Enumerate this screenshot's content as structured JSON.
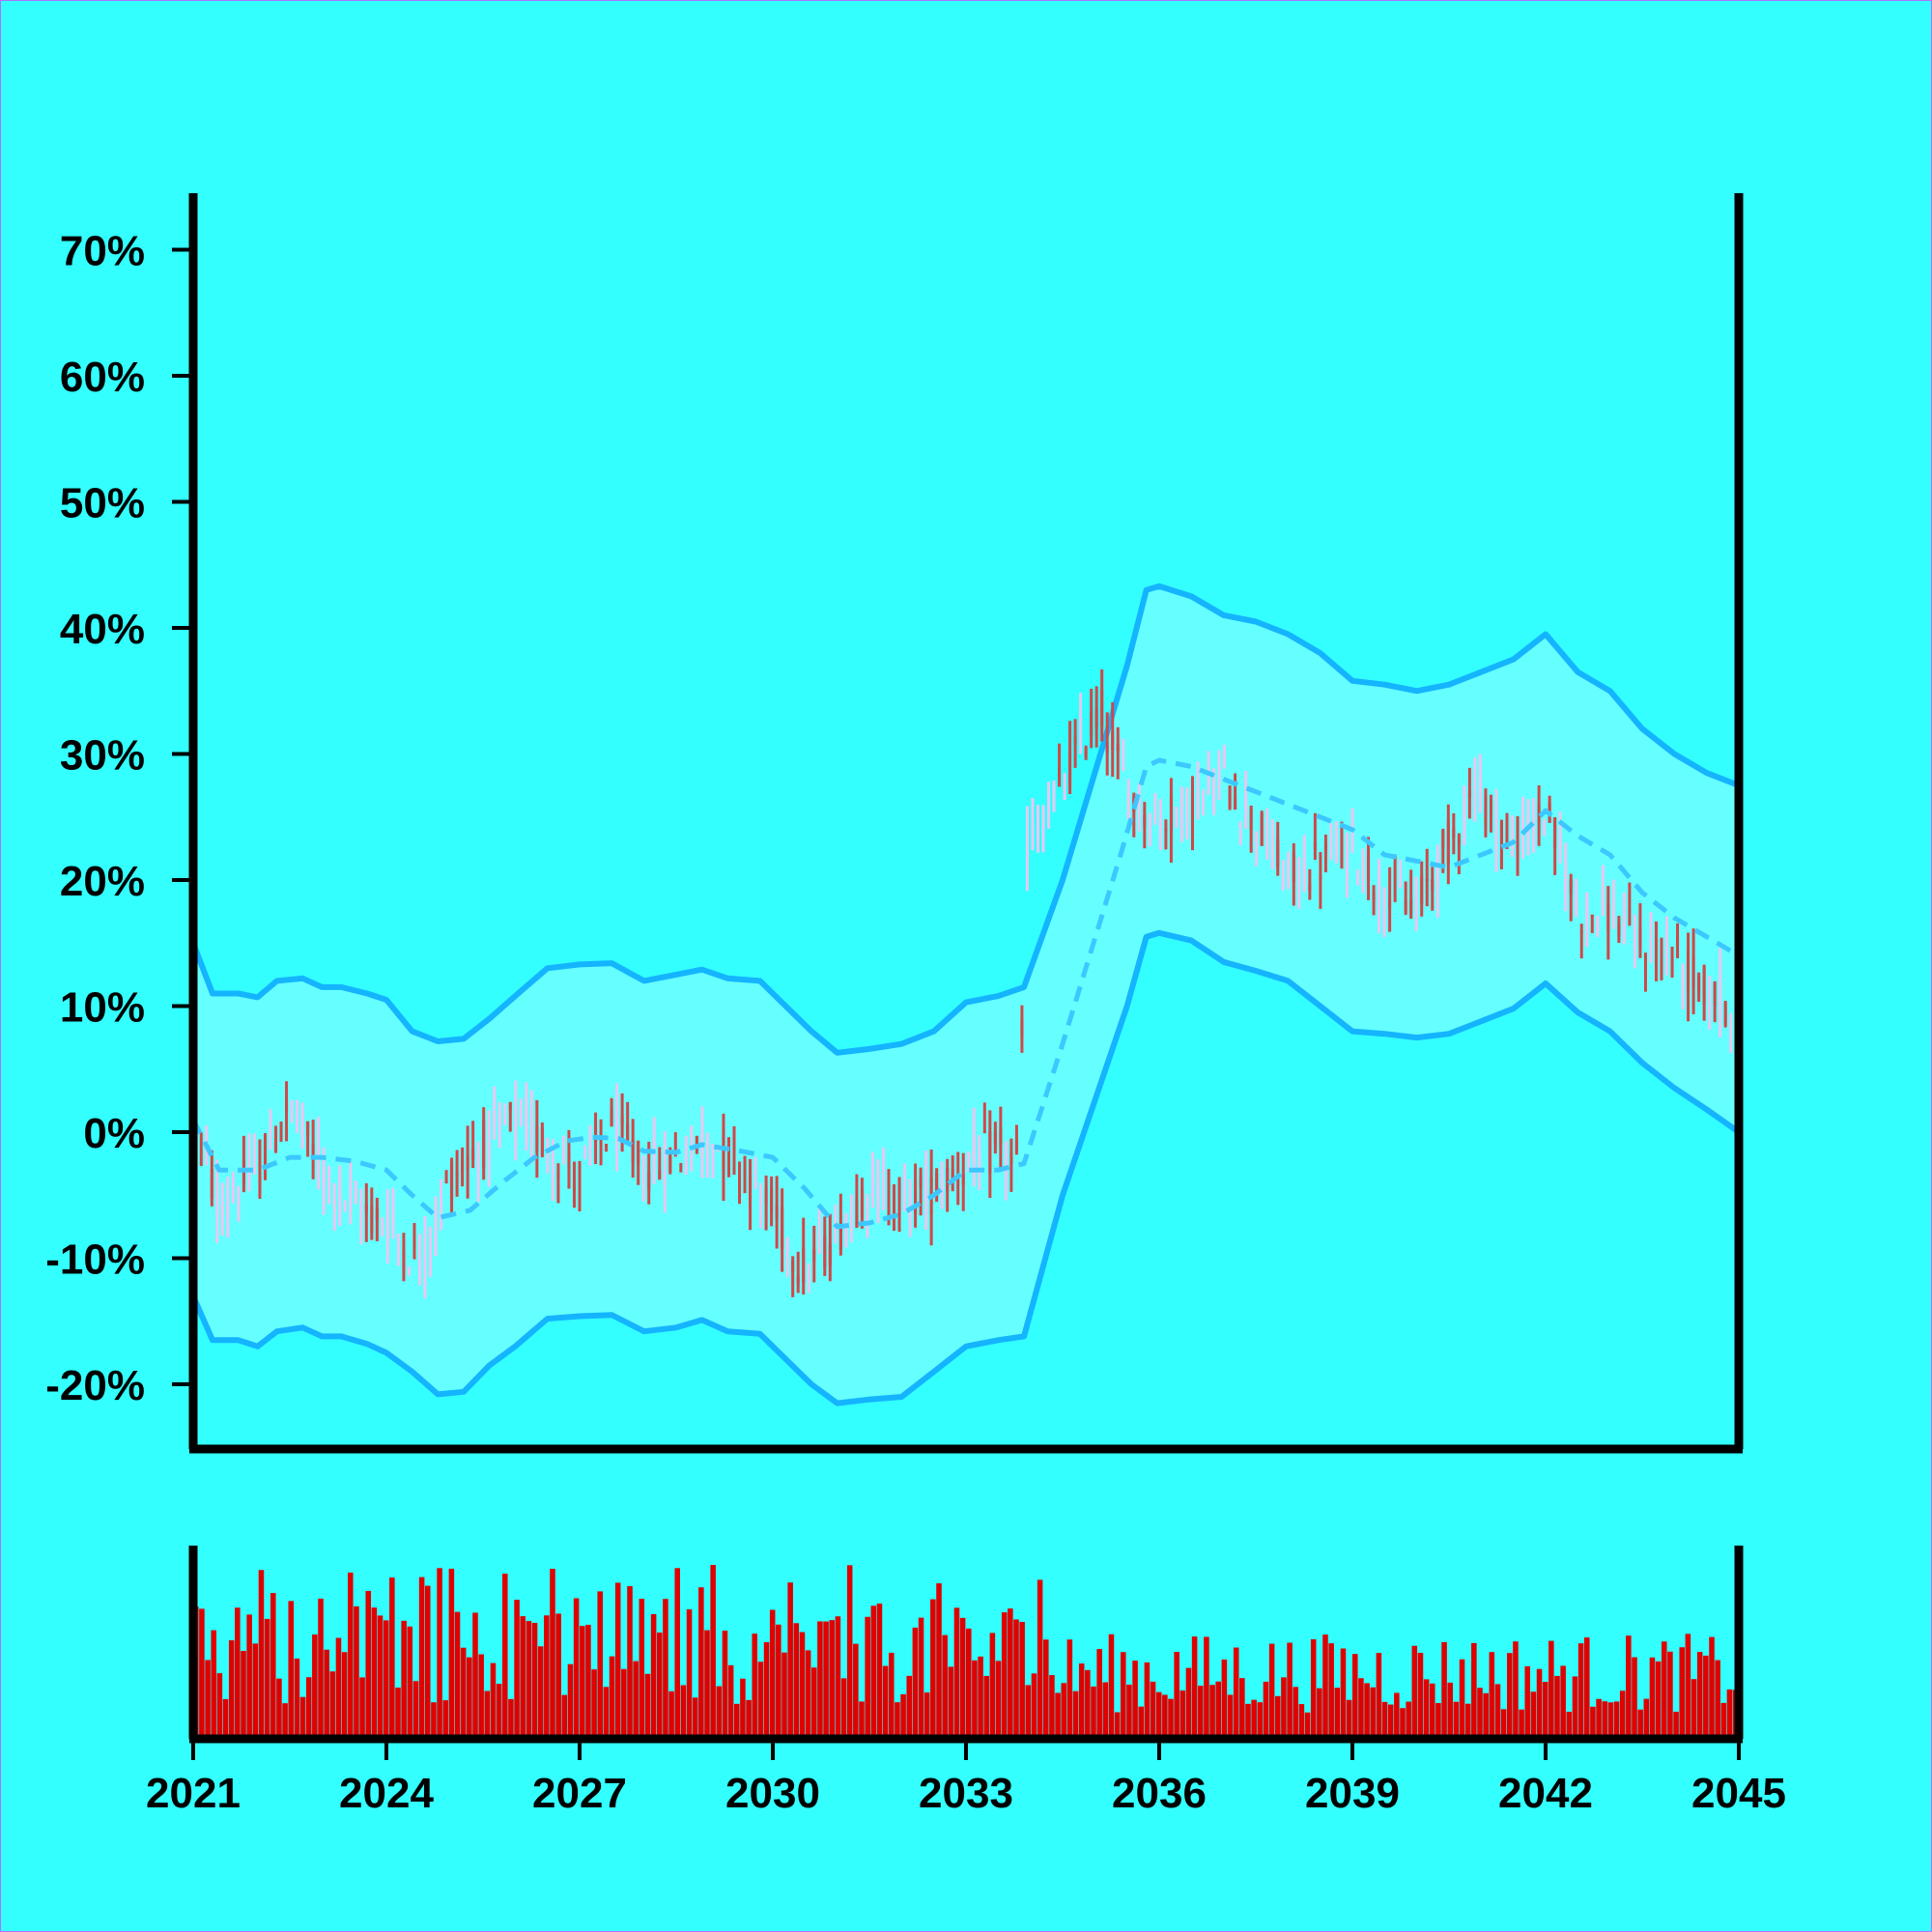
{
  "chart_data": {
    "type": "candlestick",
    "x_axis": {
      "min": 2021,
      "max": 2045,
      "ticks": [
        "2021",
        "2024",
        "2027",
        "2030",
        "2033",
        "2036",
        "2039",
        "2042",
        "2045"
      ]
    },
    "y_axis": {
      "min": -25,
      "max": 75,
      "ticks": [
        "-20%",
        "-10%",
        "0%",
        "10%",
        "20%",
        "30%",
        "40%",
        "50%",
        "60%",
        "70%"
      ],
      "tick_values": [
        -20,
        -10,
        0,
        10,
        20,
        30,
        40,
        50,
        60,
        70
      ]
    },
    "colors": {
      "background": "#33FFFF",
      "band_fill": "#66FFFF",
      "band_line": "#14B4FF",
      "mid_line": "#3CC8FF",
      "up": "#E8C8F0",
      "down": "#D24646",
      "volume": "#E00000",
      "axis": "#000000"
    },
    "candle_anchors": [
      [
        2021.0,
        1.0
      ],
      [
        2021.4,
        -6.0
      ],
      [
        2022.0,
        -3.0
      ],
      [
        2022.5,
        2.0
      ],
      [
        2023.0,
        -3.0
      ],
      [
        2023.5,
        -6.0
      ],
      [
        2024.0,
        -7.0
      ],
      [
        2024.5,
        -10.5
      ],
      [
        2025.0,
        -3.5
      ],
      [
        2025.5,
        -1.0
      ],
      [
        2026.0,
        1.0
      ],
      [
        2026.5,
        -1.0
      ],
      [
        2027.0,
        -3.5
      ],
      [
        2027.5,
        0.5
      ],
      [
        2028.0,
        -3.0
      ],
      [
        2028.5,
        -2.0
      ],
      [
        2029.0,
        -0.5
      ],
      [
        2029.5,
        -2.5
      ],
      [
        2030.0,
        -6.5
      ],
      [
        2030.5,
        -11.0
      ],
      [
        2031.0,
        -8.0
      ],
      [
        2031.5,
        -4.0
      ],
      [
        2032.0,
        -5.5
      ],
      [
        2032.5,
        -4.5
      ],
      [
        2033.0,
        -2.5
      ],
      [
        2033.5,
        -1.5
      ],
      [
        2033.85,
        -2.5
      ],
      [
        2033.9,
        22.5
      ],
      [
        2034.3,
        25.5
      ],
      [
        2034.8,
        31.0
      ],
      [
        2035.1,
        33.5
      ],
      [
        2035.5,
        27.0
      ],
      [
        2036.0,
        24.5
      ],
      [
        2036.5,
        26.0
      ],
      [
        2037.0,
        28.0
      ],
      [
        2037.5,
        24.5
      ],
      [
        2038.0,
        20.0
      ],
      [
        2038.5,
        21.5
      ],
      [
        2039.0,
        22.5
      ],
      [
        2039.5,
        19.0
      ],
      [
        2040.0,
        18.0
      ],
      [
        2040.5,
        23.0
      ],
      [
        2040.9,
        27.5
      ],
      [
        2041.5,
        22.5
      ],
      [
        2042.0,
        25.5
      ],
      [
        2042.5,
        17.5
      ],
      [
        2043.0,
        17.5
      ],
      [
        2043.5,
        14.5
      ],
      [
        2044.0,
        14.0
      ],
      [
        2044.5,
        11.0
      ],
      [
        2045.0,
        9.5
      ]
    ],
    "mid_line": [
      [
        2021.0,
        1.0
      ],
      [
        2021.4,
        -3.0
      ],
      [
        2022.0,
        -3.0
      ],
      [
        2022.5,
        -2.0
      ],
      [
        2023.0,
        -2.0
      ],
      [
        2023.5,
        -2.3
      ],
      [
        2024.0,
        -3.0
      ],
      [
        2024.4,
        -5.0
      ],
      [
        2024.8,
        -6.8
      ],
      [
        2025.3,
        -6.2
      ],
      [
        2025.8,
        -4.0
      ],
      [
        2026.3,
        -2.0
      ],
      [
        2026.8,
        -0.7
      ],
      [
        2027.2,
        -0.4
      ],
      [
        2027.6,
        -0.5
      ],
      [
        2028.0,
        -1.5
      ],
      [
        2028.5,
        -1.6
      ],
      [
        2028.9,
        -1.0
      ],
      [
        2029.5,
        -1.5
      ],
      [
        2030.0,
        -2.0
      ],
      [
        2030.5,
        -4.5
      ],
      [
        2031.0,
        -7.5
      ],
      [
        2031.5,
        -7.2
      ],
      [
        2032.0,
        -6.5
      ],
      [
        2032.5,
        -5.0
      ],
      [
        2033.0,
        -3.0
      ],
      [
        2033.5,
        -3.0
      ],
      [
        2033.9,
        -2.5
      ],
      [
        2034.5,
        7.0
      ],
      [
        2035.4,
        22.0
      ],
      [
        2035.8,
        29.0
      ],
      [
        2036.0,
        29.5
      ],
      [
        2036.5,
        29.0
      ],
      [
        2037.0,
        28.0
      ],
      [
        2037.5,
        27.0
      ],
      [
        2038.0,
        26.0
      ],
      [
        2038.5,
        25.0
      ],
      [
        2039.0,
        24.0
      ],
      [
        2039.5,
        22.0
      ],
      [
        2040.0,
        21.5
      ],
      [
        2040.5,
        21.0
      ],
      [
        2041.0,
        22.0
      ],
      [
        2041.5,
        23.0
      ],
      [
        2042.0,
        25.5
      ],
      [
        2042.5,
        23.5
      ],
      [
        2043.0,
        22.0
      ],
      [
        2043.5,
        19.0
      ],
      [
        2044.0,
        17.0
      ],
      [
        2044.5,
        15.5
      ],
      [
        2045.0,
        14.0
      ]
    ],
    "band_upper": [
      [
        2021.0,
        15.0
      ],
      [
        2021.3,
        11.0
      ],
      [
        2021.7,
        11.0
      ],
      [
        2022.0,
        10.7
      ],
      [
        2022.3,
        12.0
      ],
      [
        2022.7,
        12.2
      ],
      [
        2023.0,
        11.5
      ],
      [
        2023.3,
        11.5
      ],
      [
        2023.7,
        11.0
      ],
      [
        2024.0,
        10.5
      ],
      [
        2024.4,
        8.0
      ],
      [
        2024.8,
        7.2
      ],
      [
        2025.2,
        7.4
      ],
      [
        2025.6,
        9.0
      ],
      [
        2026.0,
        10.8
      ],
      [
        2026.5,
        13.0
      ],
      [
        2027.0,
        13.3
      ],
      [
        2027.5,
        13.4
      ],
      [
        2028.0,
        12.0
      ],
      [
        2028.5,
        12.5
      ],
      [
        2028.9,
        12.9
      ],
      [
        2029.3,
        12.2
      ],
      [
        2029.8,
        12.0
      ],
      [
        2030.2,
        10.0
      ],
      [
        2030.6,
        8.0
      ],
      [
        2031.0,
        6.3
      ],
      [
        2031.5,
        6.6
      ],
      [
        2032.0,
        7.0
      ],
      [
        2032.5,
        8.0
      ],
      [
        2033.0,
        10.3
      ],
      [
        2033.5,
        10.8
      ],
      [
        2033.9,
        11.5
      ],
      [
        2034.5,
        20.0
      ],
      [
        2035.5,
        37.0
      ],
      [
        2035.8,
        43.0
      ],
      [
        2036.0,
        43.3
      ],
      [
        2036.5,
        42.5
      ],
      [
        2037.0,
        41.0
      ],
      [
        2037.5,
        40.5
      ],
      [
        2038.0,
        39.5
      ],
      [
        2038.5,
        38.0
      ],
      [
        2039.0,
        35.8
      ],
      [
        2039.5,
        35.5
      ],
      [
        2040.0,
        35.0
      ],
      [
        2040.5,
        35.5
      ],
      [
        2041.0,
        36.5
      ],
      [
        2041.5,
        37.5
      ],
      [
        2042.0,
        39.5
      ],
      [
        2042.5,
        36.5
      ],
      [
        2043.0,
        35.0
      ],
      [
        2043.5,
        32.0
      ],
      [
        2044.0,
        30.0
      ],
      [
        2044.5,
        28.5
      ],
      [
        2045.0,
        27.5
      ]
    ],
    "band_lower": [
      [
        2021.0,
        -13.0
      ],
      [
        2021.3,
        -16.5
      ],
      [
        2021.7,
        -16.5
      ],
      [
        2022.0,
        -17.0
      ],
      [
        2022.3,
        -15.8
      ],
      [
        2022.7,
        -15.5
      ],
      [
        2023.0,
        -16.2
      ],
      [
        2023.3,
        -16.2
      ],
      [
        2023.7,
        -16.8
      ],
      [
        2024.0,
        -17.5
      ],
      [
        2024.4,
        -19.0
      ],
      [
        2024.8,
        -20.8
      ],
      [
        2025.2,
        -20.6
      ],
      [
        2025.6,
        -18.5
      ],
      [
        2026.0,
        -17.0
      ],
      [
        2026.5,
        -14.8
      ],
      [
        2027.0,
        -14.6
      ],
      [
        2027.5,
        -14.5
      ],
      [
        2028.0,
        -15.8
      ],
      [
        2028.5,
        -15.5
      ],
      [
        2028.9,
        -14.9
      ],
      [
        2029.3,
        -15.8
      ],
      [
        2029.8,
        -16.0
      ],
      [
        2030.2,
        -18.0
      ],
      [
        2030.6,
        -20.0
      ],
      [
        2031.0,
        -21.5
      ],
      [
        2031.5,
        -21.2
      ],
      [
        2032.0,
        -21.0
      ],
      [
        2032.5,
        -19.0
      ],
      [
        2033.0,
        -17.0
      ],
      [
        2033.5,
        -16.5
      ],
      [
        2033.9,
        -16.2
      ],
      [
        2034.5,
        -5.0
      ],
      [
        2035.5,
        10.0
      ],
      [
        2035.8,
        15.5
      ],
      [
        2036.0,
        15.8
      ],
      [
        2036.5,
        15.2
      ],
      [
        2037.0,
        13.5
      ],
      [
        2037.5,
        12.8
      ],
      [
        2038.0,
        12.0
      ],
      [
        2038.5,
        10.0
      ],
      [
        2039.0,
        8.0
      ],
      [
        2039.5,
        7.8
      ],
      [
        2040.0,
        7.5
      ],
      [
        2040.5,
        7.8
      ],
      [
        2041.0,
        8.8
      ],
      [
        2041.5,
        9.8
      ],
      [
        2042.0,
        11.8
      ],
      [
        2042.5,
        9.5
      ],
      [
        2043.0,
        8.0
      ],
      [
        2043.5,
        5.5
      ],
      [
        2044.0,
        3.5
      ],
      [
        2044.5,
        1.8
      ],
      [
        2045.0,
        0.0
      ]
    ]
  }
}
